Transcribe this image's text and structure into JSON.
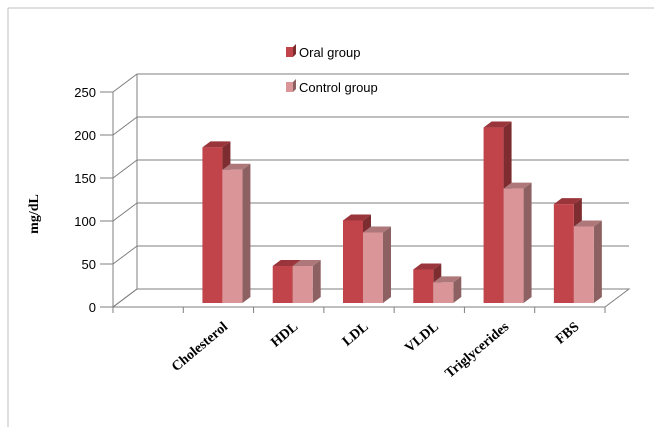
{
  "chart_data": {
    "type": "bar",
    "categories": [
      "Cholesterol",
      "HDL",
      "LDL",
      "VLDL",
      "Triglycerides",
      "FBS"
    ],
    "series": [
      {
        "name": "Oral group",
        "values": [
          181,
          43,
          96,
          39,
          204,
          115
        ],
        "color": "#c0444a"
      },
      {
        "name": "Control group",
        "values": [
          155,
          43,
          82,
          24,
          133,
          89
        ],
        "color": "#d99597"
      }
    ],
    "title": "",
    "xlabel": "",
    "ylabel": "mg/dL",
    "ylim": [
      0,
      250
    ],
    "yticks": [
      0,
      50,
      100,
      150,
      200,
      250
    ],
    "grid": true,
    "legend_position": "top-center",
    "three_d": true
  }
}
